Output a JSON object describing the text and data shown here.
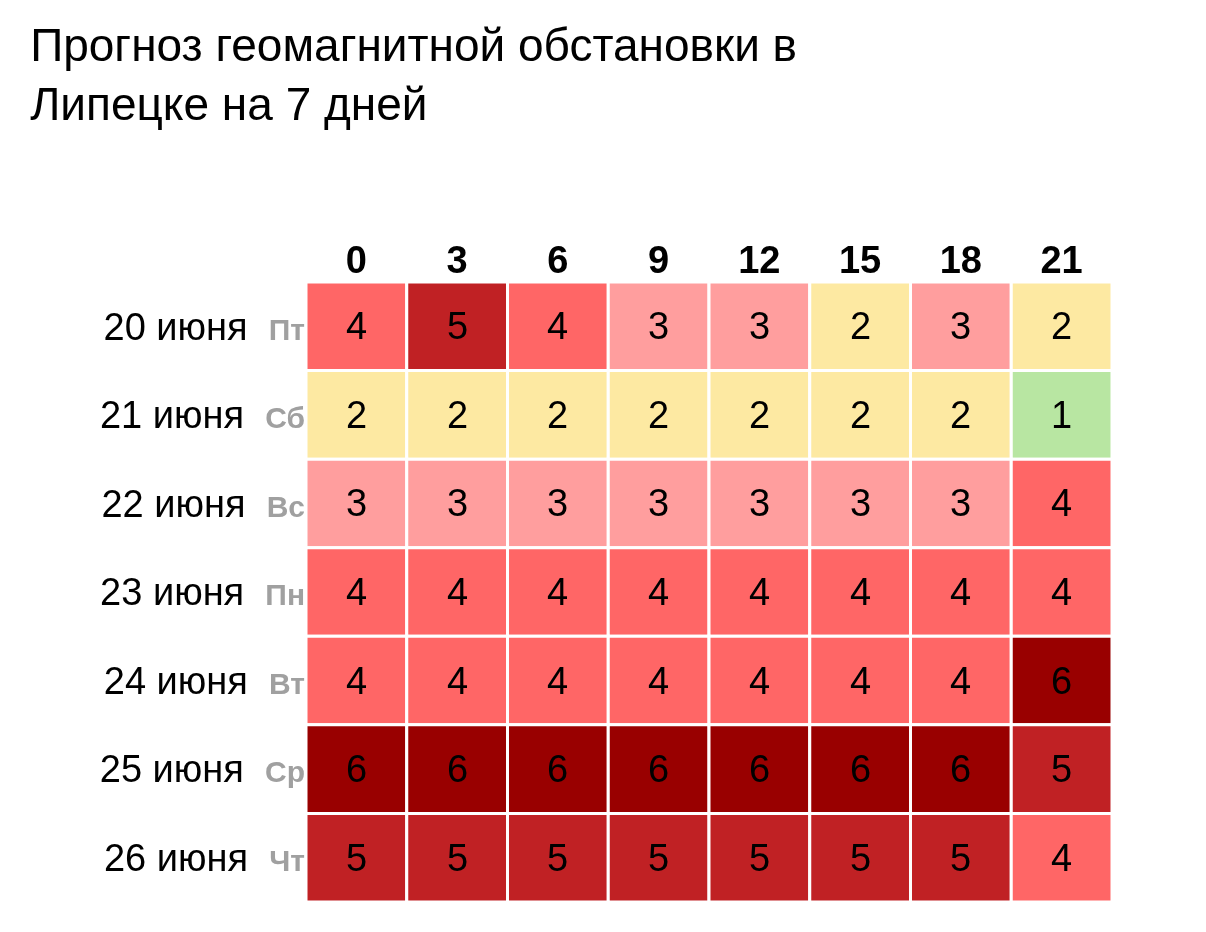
{
  "chart_data": {
    "type": "heatmap",
    "title": "Прогноз геомагнитной обстановки в\nЛипецке на 7 дней",
    "categories": [
      "0",
      "3",
      "6",
      "9",
      "12",
      "15",
      "18",
      "21"
    ],
    "y_categories": [
      "20 июня",
      "21 июня",
      "22 июня",
      "23 июня",
      "24 июня",
      "25 июня",
      "26 июня"
    ],
    "y2_categories": [
      "Пт",
      "Сб",
      "Вс",
      "Пн",
      "Вт",
      "Ср",
      "Чт"
    ],
    "cells": [
      [
        4,
        5,
        4,
        3,
        3,
        2,
        3,
        2
      ],
      [
        2,
        2,
        2,
        2,
        2,
        2,
        2,
        1
      ],
      [
        3,
        3,
        3,
        3,
        3,
        3,
        3,
        4
      ],
      [
        4,
        4,
        4,
        4,
        4,
        4,
        4,
        4
      ],
      [
        4,
        4,
        4,
        4,
        4,
        4,
        4,
        6
      ],
      [
        6,
        6,
        6,
        6,
        6,
        6,
        6,
        5
      ],
      [
        5,
        5,
        5,
        5,
        5,
        5,
        5,
        4
      ]
    ],
    "data_labels": true
  }
}
